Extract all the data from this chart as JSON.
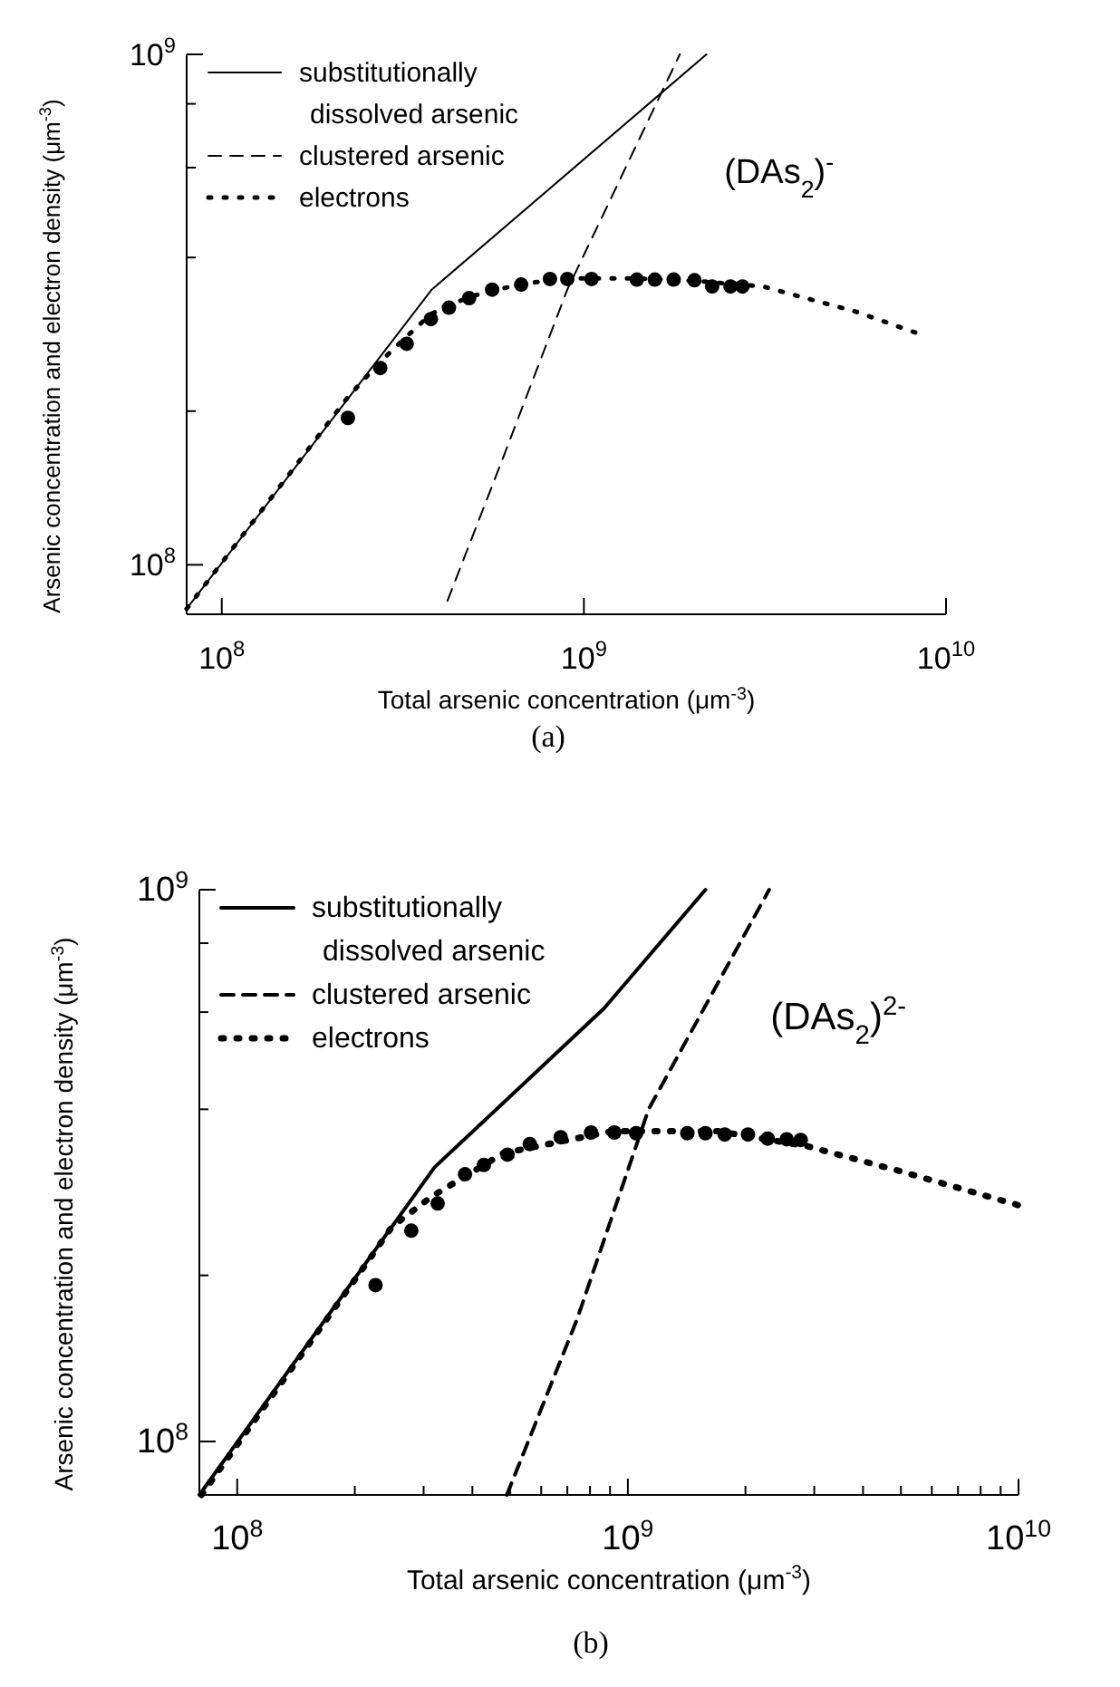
{
  "chart_data": [
    {
      "type": "line",
      "xlabel": "Total arsenic concentration  (μm$^{-3}$)",
      "ylabel": "Arsenic concentration and electron density (μm$^{-3}$)",
      "log": "xy",
      "legend": "top left",
      "annotations": [
        "(DAs$_{2}$)$^{-}$",
        "(a)"
      ],
      "xlim": [
        80000000,
        10000000000
      ],
      "ylim": [
        80000000,
        1000000000
      ],
      "xticks": [
        {
          "value": 100000000,
          "label": "10$^{8}$"
        },
        {
          "value": 1000000000,
          "label": "10$^{9}$"
        },
        {
          "value": 10000000000,
          "label": "10$^{10}$"
        }
      ],
      "yticks": [
        {
          "value": 100000000,
          "label": "10$^{8}$"
        },
        {
          "value": 200000000,
          "label": null
        },
        {
          "value": 400000000,
          "label": null
        },
        {
          "value": 600000000,
          "label": null
        },
        {
          "value": 800000000,
          "label": null
        },
        {
          "value": 1000000000,
          "label": "10$^{9}$"
        }
      ],
      "series": [
        {
          "name": "substitutionally dissolved arsenic",
          "line_style": "solid",
          "color": "#000000",
          "x": [
            80000000,
            380000000,
            2180000000
          ],
          "values": [
            82000000,
            346000000,
            1000000000
          ]
        },
        {
          "name": "clustered arsenic",
          "line_style": "dashed",
          "color": "#000000",
          "x": [
            420000000,
            600000000,
            900000000,
            1840000000
          ],
          "values": [
            85000000,
            163000000,
            346000000,
            1000000000
          ]
        },
        {
          "name": "electrons",
          "line_style": "dotted",
          "color": "#000000",
          "x": [
            80000000,
            223000000,
            274000000,
            324000000,
            378000000,
            482000000,
            671000000,
            900000000,
            1400000000,
            2020000000,
            3120000000,
            5660000000,
            8360000000
          ],
          "values": [
            82000000,
            213000000,
            250000000,
            280000000,
            310000000,
            335000000,
            355000000,
            364000000,
            364000000,
            360000000,
            351000000,
            313000000,
            284000000
          ]
        },
        {
          "type": "scatter",
          "marker": "circle",
          "color": "#000000",
          "x": [
            223000000,
            274000000,
            324000000,
            378000000,
            424000000,
            482000000,
            558000000,
            671000000,
            806000000,
            900000000,
            1050000000,
            1400000000,
            1570000000,
            1770000000,
            2020000000,
            2260000000,
            2540000000,
            2740000000
          ],
          "values": [
            194000000,
            243000000,
            271000000,
            303000000,
            319000000,
            333000000,
            346000000,
            354000000,
            363000000,
            363000000,
            363000000,
            362000000,
            362000000,
            362000000,
            361000000,
            351000000,
            351000000,
            351000000
          ]
        }
      ]
    },
    {
      "type": "line",
      "xlabel": "Total arsenic concentration  (μm$^{-3}$)",
      "ylabel": "Arsenic concentration and electron density (μm$^{-3}$)",
      "log": "xy",
      "legend": "top left",
      "annotations": [
        "(DAs$_{2}$)$^{2-}$",
        "(b)"
      ],
      "xlim": [
        80000000,
        10000000000
      ],
      "ylim": [
        80000000,
        1000000000
      ],
      "xticks": [
        {
          "value": 100000000,
          "label": "10$^{8}$"
        },
        {
          "value": 200000000,
          "label": null
        },
        {
          "value": 300000000,
          "label": null
        },
        {
          "value": 400000000,
          "label": null
        },
        {
          "value": 500000000,
          "label": null
        },
        {
          "value": 600000000,
          "label": null
        },
        {
          "value": 700000000,
          "label": null
        },
        {
          "value": 800000000,
          "label": null
        },
        {
          "value": 900000000,
          "label": null
        },
        {
          "value": 1000000000,
          "label": "10$^{9}$"
        },
        {
          "value": 2000000000,
          "label": null
        },
        {
          "value": 3000000000,
          "label": null
        },
        {
          "value": 4000000000,
          "label": null
        },
        {
          "value": 5000000000,
          "label": null
        },
        {
          "value": 6000000000,
          "label": null
        },
        {
          "value": 7000000000,
          "label": null
        },
        {
          "value": 8000000000,
          "label": null
        },
        {
          "value": 9000000000,
          "label": null
        },
        {
          "value": 10000000000,
          "label": "10$^{10}$"
        }
      ],
      "yticks": [
        {
          "value": 100000000,
          "label": "10$^{8}$"
        },
        {
          "value": 200000000,
          "label": null
        },
        {
          "value": 400000000,
          "label": null
        },
        {
          "value": 600000000,
          "label": null
        },
        {
          "value": 800000000,
          "label": null
        },
        {
          "value": 1000000000,
          "label": "10$^{9}$"
        }
      ],
      "series": [
        {
          "name": "substitutionally dissolved arsenic",
          "line_style": "solid",
          "color": "#000000",
          "x": [
            80000000,
            320000000,
            870000000,
            1580000000
          ],
          "values": [
            80000000,
            314000000,
            610000000,
            1000000000
          ]
        },
        {
          "name": "clustered arsenic",
          "line_style": "dashed",
          "color": "#000000",
          "x": [
            490000000,
            740000000,
            1130000000,
            2300000000
          ],
          "values": [
            80000000,
            166000000,
            400000000,
            1000000000
          ]
        },
        {
          "name": "electrons",
          "line_style": "dotted",
          "color": "#000000",
          "x": [
            81000000,
            215000000,
            249000000,
            315000000,
            480000000,
            910000000,
            1700000000,
            2870000000,
            4970000000,
            10000000000
          ],
          "values": [
            80000000,
            211000000,
            245000000,
            278000000,
            333000000,
            365000000,
            365000000,
            343000000,
            309000000,
            268000000
          ]
        },
        {
          "type": "scatter",
          "marker": "circle",
          "color": "#000000",
          "x": [
            226000000,
            279000000,
            326000000,
            383000000,
            428000000,
            492000000,
            561000000,
            673000000,
            805000000,
            923000000,
            1050000000,
            1420000000,
            1580000000,
            1770000000,
            2030000000,
            2280000000,
            2550000000,
            2770000000
          ],
          "values": [
            192000000,
            241000000,
            270000000,
            305000000,
            317000000,
            331000000,
            346000000,
            356000000,
            363000000,
            363000000,
            362000000,
            362000000,
            362000000,
            360000000,
            360000000,
            354000000,
            353000000,
            352000000
          ]
        }
      ]
    }
  ]
}
